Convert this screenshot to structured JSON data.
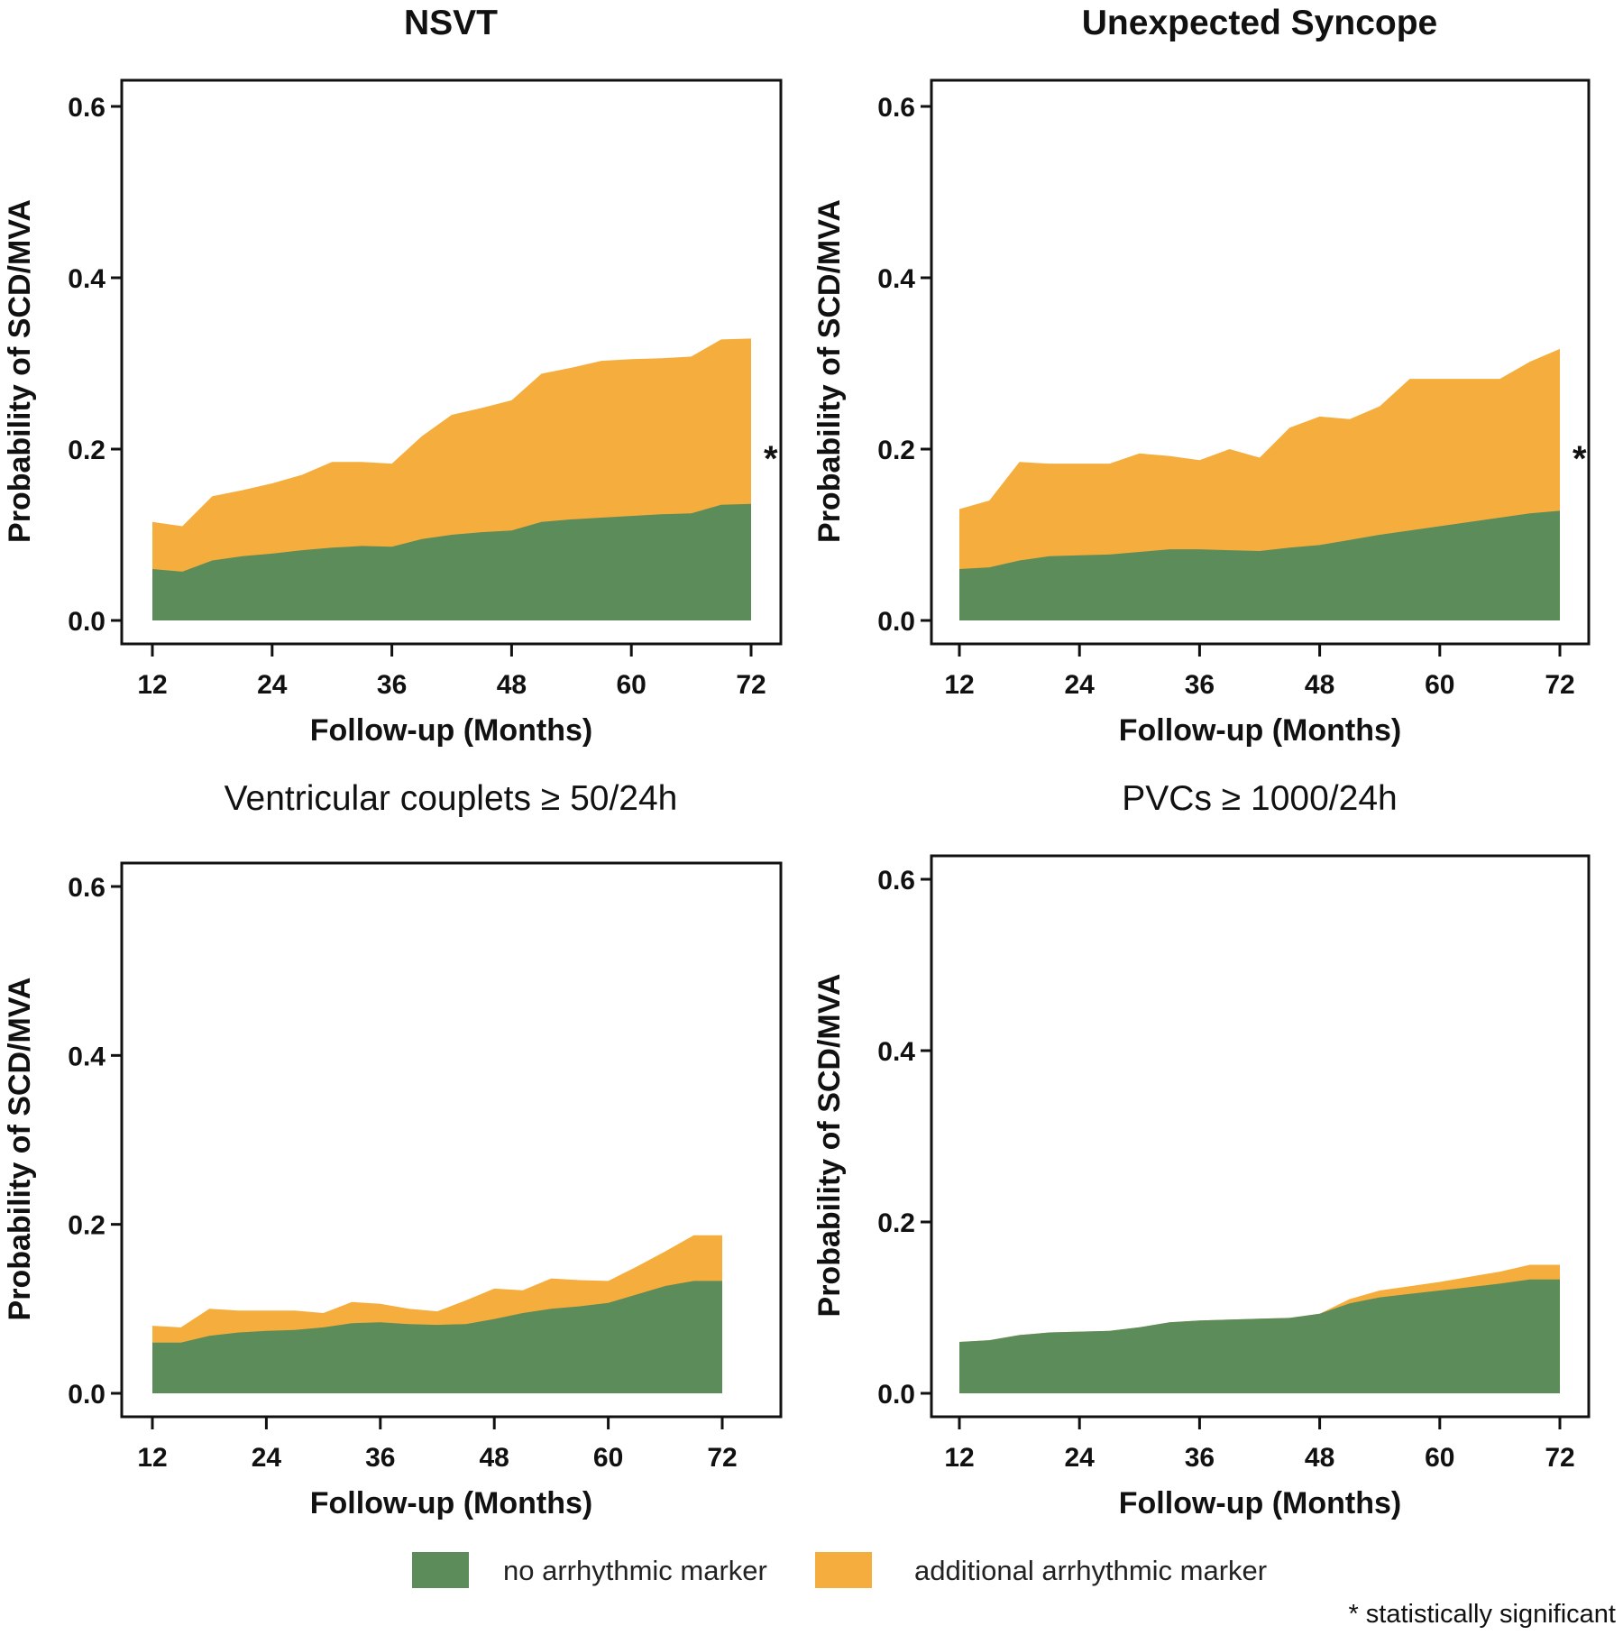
{
  "chart_data": [
    {
      "type": "area",
      "title": "NSVT",
      "title_bold": true,
      "xlabel": "Follow-up (Months)",
      "ylabel": "Probability of SCD/MVA",
      "xticks": [
        12,
        24,
        36,
        48,
        60,
        72
      ],
      "yticks": [
        "0.0",
        "0.2",
        "0.4",
        "0.6"
      ],
      "xlim": [
        12,
        72
      ],
      "ylim": [
        0,
        0.6
      ],
      "significance_mark": "*",
      "x": [
        12,
        15,
        18,
        21,
        24,
        27,
        30,
        33,
        36,
        39,
        42,
        45,
        48,
        51,
        54,
        57,
        60,
        63,
        66,
        69,
        72
      ],
      "series": [
        {
          "name": "no arrhythmic marker",
          "values": [
            0.06,
            0.057,
            0.07,
            0.075,
            0.078,
            0.082,
            0.085,
            0.087,
            0.086,
            0.095,
            0.1,
            0.103,
            0.105,
            0.115,
            0.118,
            0.12,
            0.122,
            0.124,
            0.125,
            0.135,
            0.136
          ]
        },
        {
          "name": "additional arrhythmic marker",
          "values": [
            0.115,
            0.11,
            0.145,
            0.152,
            0.16,
            0.17,
            0.185,
            0.185,
            0.183,
            0.215,
            0.24,
            0.248,
            0.257,
            0.288,
            0.295,
            0.303,
            0.305,
            0.306,
            0.308,
            0.328,
            0.329
          ]
        }
      ]
    },
    {
      "type": "area",
      "title": "Unexpected Syncope",
      "title_bold": true,
      "xlabel": "Follow-up (Months)",
      "ylabel": "Probability of SCD/MVA",
      "xticks": [
        12,
        24,
        36,
        48,
        60,
        72
      ],
      "yticks": [
        "0.0",
        "0.2",
        "0.4",
        "0.6"
      ],
      "xlim": [
        12,
        72
      ],
      "ylim": [
        0,
        0.6
      ],
      "significance_mark": "*",
      "x": [
        12,
        15,
        18,
        21,
        24,
        27,
        30,
        33,
        36,
        39,
        42,
        45,
        48,
        51,
        54,
        57,
        60,
        63,
        66,
        69,
        72
      ],
      "series": [
        {
          "name": "no arrhythmic marker",
          "values": [
            0.06,
            0.062,
            0.07,
            0.075,
            0.076,
            0.077,
            0.08,
            0.083,
            0.083,
            0.082,
            0.081,
            0.085,
            0.088,
            0.094,
            0.1,
            0.105,
            0.11,
            0.115,
            0.12,
            0.125,
            0.128
          ]
        },
        {
          "name": "additional arrhythmic marker",
          "values": [
            0.13,
            0.14,
            0.185,
            0.183,
            0.183,
            0.183,
            0.195,
            0.192,
            0.187,
            0.2,
            0.19,
            0.225,
            0.238,
            0.235,
            0.25,
            0.282,
            0.282,
            0.282,
            0.282,
            0.302,
            0.317
          ]
        }
      ]
    },
    {
      "type": "area",
      "title": "Ventricular couplets ≥ 50/24h",
      "title_bold": false,
      "xlabel": "Follow-up (Months)",
      "ylabel": "Probability of SCD/MVA",
      "xticks": [
        12,
        24,
        36,
        48,
        60,
        72
      ],
      "yticks": [
        "0.0",
        "0.2",
        "0.4",
        "0.6"
      ],
      "xlim": [
        12,
        72
      ],
      "ylim": [
        0,
        0.6
      ],
      "significance_mark": "",
      "x": [
        12,
        15,
        18,
        21,
        24,
        27,
        30,
        33,
        36,
        39,
        42,
        45,
        48,
        51,
        54,
        57,
        60,
        63,
        66,
        69,
        72
      ],
      "series": [
        {
          "name": "no arrhythmic marker",
          "values": [
            0.06,
            0.06,
            0.068,
            0.072,
            0.074,
            0.075,
            0.078,
            0.083,
            0.084,
            0.082,
            0.081,
            0.082,
            0.088,
            0.095,
            0.1,
            0.103,
            0.107,
            0.117,
            0.127,
            0.133,
            0.133
          ]
        },
        {
          "name": "additional arrhythmic marker",
          "values": [
            0.08,
            0.078,
            0.1,
            0.098,
            0.098,
            0.098,
            0.095,
            0.108,
            0.106,
            0.1,
            0.097,
            0.11,
            0.124,
            0.122,
            0.136,
            0.134,
            0.133,
            0.15,
            0.168,
            0.187,
            0.187
          ]
        }
      ]
    },
    {
      "type": "area",
      "title": "PVCs ≥ 1000/24h",
      "title_bold": false,
      "xlabel": "Follow-up (Months)",
      "ylabel": "Probability of SCD/MVA",
      "xticks": [
        12,
        24,
        36,
        48,
        60,
        72
      ],
      "yticks": [
        "0.0",
        "0.2",
        "0.4",
        "0.6"
      ],
      "xlim": [
        12,
        72
      ],
      "ylim": [
        0,
        0.6
      ],
      "significance_mark": "",
      "x": [
        12,
        15,
        18,
        21,
        24,
        27,
        30,
        33,
        36,
        39,
        42,
        45,
        48,
        51,
        54,
        57,
        60,
        63,
        66,
        69,
        72
      ],
      "series": [
        {
          "name": "no arrhythmic marker",
          "values": [
            0.06,
            0.062,
            0.068,
            0.071,
            0.072,
            0.073,
            0.077,
            0.083,
            0.085,
            0.086,
            0.087,
            0.088,
            0.093,
            0.105,
            0.112,
            0.116,
            0.12,
            0.124,
            0.128,
            0.133,
            0.133
          ]
        },
        {
          "name": "additional arrhythmic marker",
          "values": [
            0.06,
            0.062,
            0.068,
            0.071,
            0.072,
            0.073,
            0.077,
            0.083,
            0.085,
            0.086,
            0.087,
            0.088,
            0.093,
            0.11,
            0.12,
            0.125,
            0.13,
            0.136,
            0.142,
            0.15,
            0.15
          ]
        }
      ]
    }
  ],
  "legend": {
    "items": [
      {
        "label": "no arrhythmic marker",
        "color": "#5b8c5a"
      },
      {
        "label": "additional arrhythmic marker",
        "color": "#f5ae3d"
      }
    ],
    "note": "* statistically significant"
  }
}
